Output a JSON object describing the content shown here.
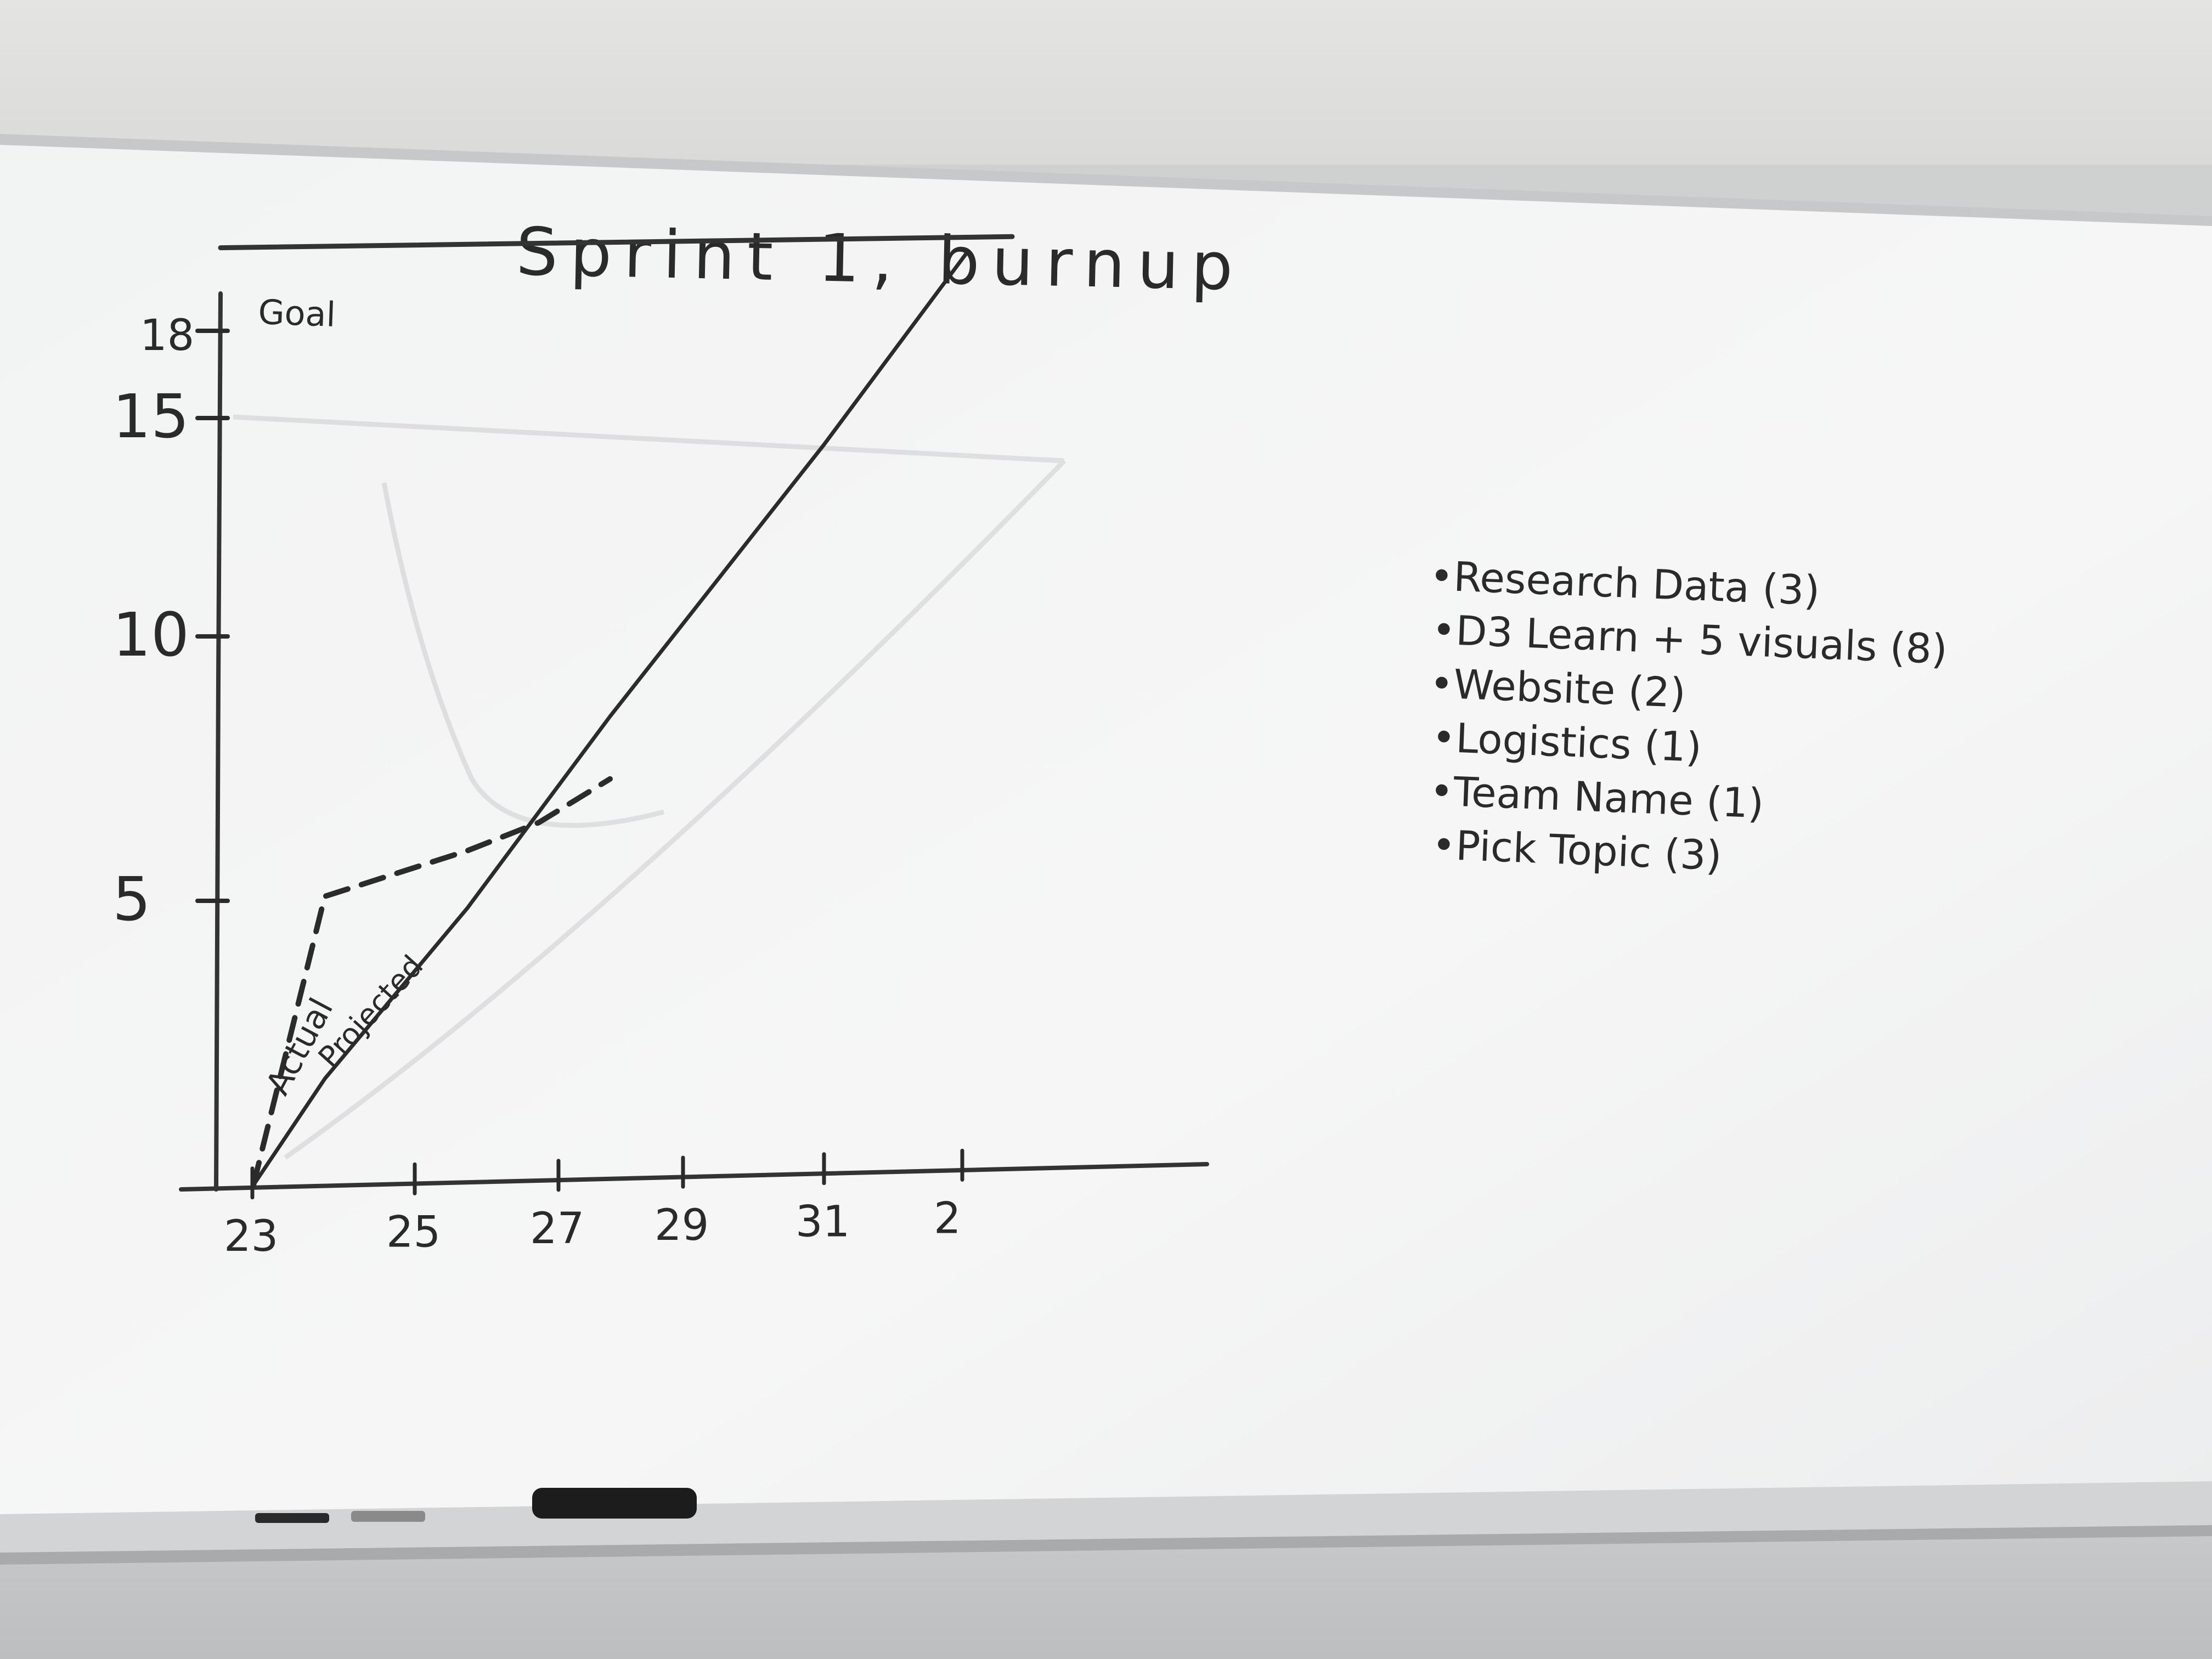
{
  "board": {
    "title": "Sprint 1, burnup",
    "ink_color": "#2b2b2b",
    "board_color": "#f3f4f4",
    "wall_color": "#e6e6e4",
    "tray_color": "#d6d7d7",
    "eraser_color": "#1c1c1c"
  },
  "chart_data": {
    "type": "line",
    "title": "Sprint 1, burnup",
    "x_ticks": [
      "23",
      "25",
      "27",
      "29",
      "31",
      "2"
    ],
    "y_ticks": [
      "5",
      "10",
      "15",
      "18"
    ],
    "ylim": [
      0,
      18
    ],
    "grid": false,
    "goal": {
      "label": "Goal",
      "value": 18
    },
    "series": [
      {
        "name": "Projected",
        "style": "solid",
        "x": [
          "23",
          "24",
          "25",
          "26",
          "27",
          "28",
          "29",
          "30",
          "31",
          "1",
          "2"
        ],
        "values": [
          0,
          2,
          3.6,
          5.2,
          7,
          8.8,
          10.5,
          12.2,
          13.9,
          15.7,
          17.5
        ]
      },
      {
        "name": "Actual",
        "style": "dashed",
        "x": [
          "23",
          "24",
          "25",
          "26",
          "27",
          "28"
        ],
        "values": [
          0,
          5.5,
          5.9,
          6.3,
          6.8,
          7.6
        ]
      }
    ]
  },
  "task_list": {
    "items": [
      "•Research Data (3)",
      "•D3 Learn + 5 visuals (8)",
      "•Website (2)",
      "•Logistics (1)",
      "•Team Name (1)",
      "•Pick Topic (3)"
    ]
  }
}
